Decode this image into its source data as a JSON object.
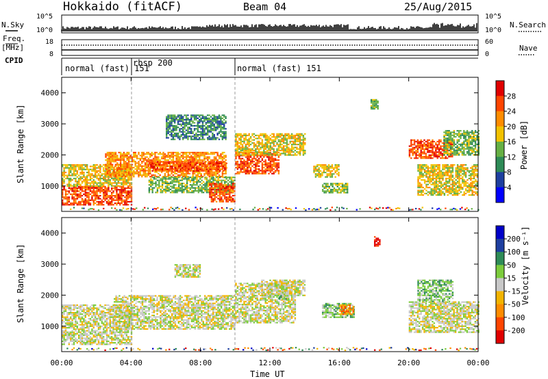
{
  "header": {
    "station": "Hokkaido (fitACF)",
    "beam": "Beam 04",
    "date": "25/Aug/2015"
  },
  "top_panel": {
    "nsky_label": "N.Sky",
    "nsearch_label": "N.Search",
    "freq_label_1": "Freq.",
    "freq_label_2": "[MHz]",
    "nave_label": "Nave",
    "cpid_label": "CPID",
    "nsky_ticks": [
      "10^5",
      "10^0"
    ],
    "nsearch_ticks": [
      "10^5",
      "10^0"
    ],
    "freq_ticks": [
      "18",
      "8"
    ],
    "nave_ticks": [
      "60",
      "0"
    ]
  },
  "cpid": [
    {
      "label": "normal (fast) 151",
      "start_hour": 0
    },
    {
      "label": "rbsp 200",
      "start_hour": 4
    },
    {
      "label": "normal (fast) 151",
      "start_hour": 10
    }
  ],
  "colors": {
    "power": [
      "#0000ff",
      "#1e3fa0",
      "#2e8b57",
      "#66b044",
      "#f2c200",
      "#ff8c00",
      "#ff4500",
      "#e00000"
    ],
    "velocity": [
      "#e00000",
      "#ff4500",
      "#ff8c00",
      "#f2b400",
      "#c8c8c8",
      "#7ccc3c",
      "#2e8b57",
      "#1e3fa0",
      "#0000c8"
    ]
  },
  "chart_data": [
    {
      "type": "heatmap",
      "name": "power-panel",
      "ylabel": "Slant Range [km]",
      "ylim": [
        180,
        4500
      ],
      "xlim": [
        0,
        24
      ],
      "yticks": [
        "1000",
        "2000",
        "3000",
        "4000"
      ],
      "colorbar_label": "Power [dB]",
      "colorbar_ticks": [
        "4",
        "8",
        "12",
        "16",
        "20",
        "24",
        "28"
      ],
      "regions": [
        {
          "t0": 0.0,
          "t1": 4.0,
          "r0": 400,
          "r1": 1000,
          "level": 6
        },
        {
          "t0": 0.0,
          "t1": 4.0,
          "r0": 1000,
          "r1": 1700,
          "level": 4
        },
        {
          "t0": 2.5,
          "t1": 9.5,
          "r0": 1300,
          "r1": 2100,
          "level": 5
        },
        {
          "t0": 5.0,
          "t1": 9.5,
          "r0": 1500,
          "r1": 1800,
          "level": 6
        },
        {
          "t0": 5.0,
          "t1": 10.0,
          "r0": 800,
          "r1": 1300,
          "level": 3
        },
        {
          "t0": 8.5,
          "t1": 10.0,
          "r0": 500,
          "r1": 1100,
          "level": 6
        },
        {
          "t0": 10.0,
          "t1": 12.5,
          "r0": 1400,
          "r1": 2100,
          "level": 6
        },
        {
          "t0": 10.0,
          "t1": 14.0,
          "r0": 2000,
          "r1": 2700,
          "level": 4
        },
        {
          "t0": 6.0,
          "t1": 9.5,
          "r0": 2500,
          "r1": 3300,
          "level": 2
        },
        {
          "t0": 14.5,
          "t1": 16.0,
          "r0": 1300,
          "r1": 1700,
          "level": 4
        },
        {
          "t0": 15.0,
          "t1": 16.5,
          "r0": 800,
          "r1": 1100,
          "level": 3
        },
        {
          "t0": 20.0,
          "t1": 22.5,
          "r0": 1900,
          "r1": 2500,
          "level": 6
        },
        {
          "t0": 20.5,
          "t1": 24.0,
          "r0": 700,
          "r1": 1700,
          "level": 4
        },
        {
          "t0": 22.0,
          "t1": 24.0,
          "r0": 2000,
          "r1": 2800,
          "level": 3
        },
        {
          "t0": 17.8,
          "t1": 18.2,
          "r0": 3500,
          "r1": 3800,
          "level": 3
        }
      ]
    },
    {
      "type": "heatmap",
      "name": "velocity-panel",
      "xlabel": "Time UT",
      "ylabel": "Slant Range [km]",
      "ylim": [
        180,
        4500
      ],
      "xlim": [
        0,
        24
      ],
      "xticks": [
        "00:00",
        "04:00",
        "08:00",
        "12:00",
        "16:00",
        "20:00",
        "00:00"
      ],
      "yticks": [
        "1000",
        "2000",
        "3000",
        "4000"
      ],
      "colorbar_label": "Velocity [m s⁻¹]",
      "colorbar_ticks": [
        "200",
        "100",
        "50",
        "15",
        "-15",
        "-50",
        "-100",
        "-200"
      ],
      "regions": [
        {
          "t0": 0.0,
          "t1": 4.0,
          "r0": 400,
          "r1": 1700,
          "level": 4
        },
        {
          "t0": 3.0,
          "t1": 10.0,
          "r0": 900,
          "r1": 2000,
          "level": 4
        },
        {
          "t0": 6.5,
          "t1": 8.0,
          "r0": 2600,
          "r1": 3000,
          "level": 4
        },
        {
          "t0": 10.0,
          "t1": 13.5,
          "r0": 1100,
          "r1": 2400,
          "level": 4
        },
        {
          "t0": 11.5,
          "t1": 14.0,
          "r0": 2000,
          "r1": 2500,
          "level": 4
        },
        {
          "t0": 12.5,
          "t1": 13.0,
          "r0": 1900,
          "r1": 2100,
          "level": 5
        },
        {
          "t0": 15.0,
          "t1": 16.8,
          "r0": 1300,
          "r1": 1750,
          "level": 5
        },
        {
          "t0": 16.0,
          "t1": 16.8,
          "r0": 1400,
          "r1": 1700,
          "level": 2
        },
        {
          "t0": 20.0,
          "t1": 24.0,
          "r0": 800,
          "r1": 1800,
          "level": 4
        },
        {
          "t0": 20.5,
          "t1": 22.5,
          "r0": 1800,
          "r1": 2500,
          "level": 5
        },
        {
          "t0": 18.0,
          "t1": 18.3,
          "r0": 3600,
          "r1": 3900,
          "level": 0
        }
      ]
    }
  ]
}
